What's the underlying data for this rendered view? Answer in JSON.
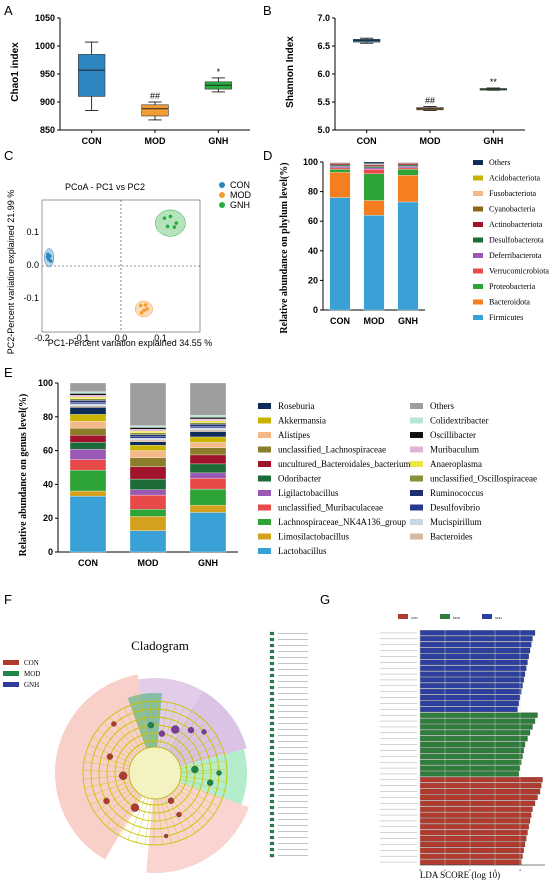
{
  "chart_data": [
    {
      "panel": "A",
      "type": "box",
      "ylabel": "Chao1 index",
      "ylim": [
        850,
        1050
      ],
      "yticks": [
        850,
        900,
        950,
        1000,
        1050
      ],
      "categories": [
        "CON",
        "MOD",
        "GNH"
      ],
      "colors": [
        "#2e86c1",
        "#f39c34",
        "#27ae3f"
      ],
      "boxes": [
        {
          "min": 885,
          "q1": 910,
          "median": 957,
          "q3": 985,
          "max": 1007
        },
        {
          "min": 868,
          "q1": 875,
          "median": 888,
          "q3": 895,
          "max": 900
        },
        {
          "min": 918,
          "q1": 923,
          "median": 930,
          "q3": 936,
          "max": 943
        }
      ],
      "annotations": [
        "",
        "##",
        "*"
      ]
    },
    {
      "panel": "B",
      "type": "box",
      "ylabel": "Shannon Index",
      "ylim": [
        5.0,
        7.0
      ],
      "yticks": [
        "5.0",
        "5.5",
        "6.0",
        "6.5",
        "7.0"
      ],
      "categories": [
        "CON",
        "MOD",
        "GNH"
      ],
      "colors": [
        "#2e86c1",
        "#f39c34",
        "#27ae3f"
      ],
      "boxes": [
        {
          "min": 6.55,
          "q1": 6.57,
          "median": 6.6,
          "q3": 6.62,
          "max": 6.64
        },
        {
          "min": 5.35,
          "q1": 5.36,
          "median": 5.38,
          "q3": 5.4,
          "max": 5.42
        },
        {
          "min": 5.71,
          "q1": 5.72,
          "median": 5.73,
          "q3": 5.74,
          "max": 5.75
        }
      ],
      "annotations": [
        "",
        "##",
        "**"
      ]
    },
    {
      "panel": "C",
      "type": "scatter",
      "title": "PCoA - PC1 vs PC2",
      "xlabel": "PC1-Percent variation explained 34.55 %",
      "ylabel": "PC2-Percent variation explained 21.99 %",
      "xlim": [
        -0.2,
        0.2
      ],
      "ylim": [
        -0.2,
        0.2
      ],
      "xticks": [
        "-0.2",
        "-0.1",
        "0.0",
        "0.1"
      ],
      "yticks": [
        "0.1",
        "0.0",
        "-0.1"
      ],
      "legend": [
        "CON",
        "MOD",
        "GNH"
      ],
      "series": [
        {
          "name": "CON",
          "color": "#2e86c1",
          "ellipse": {
            "cx": -0.182,
            "cy": 0.025,
            "rx": 0.012,
            "ry": 0.028
          },
          "x": [
            -0.185,
            -0.18,
            -0.183,
            -0.178,
            -0.186
          ],
          "y": [
            0.035,
            0.03,
            0.02,
            0.015,
            0.028
          ]
        },
        {
          "name": "MOD",
          "color": "#f39c34",
          "ellipse": {
            "cx": 0.058,
            "cy": -0.13,
            "rx": 0.022,
            "ry": 0.024
          },
          "x": [
            0.05,
            0.062,
            0.058,
            0.066,
            0.052
          ],
          "y": [
            -0.12,
            -0.118,
            -0.135,
            -0.13,
            -0.142
          ]
        },
        {
          "name": "GNH",
          "color": "#27ae3f",
          "ellipse": {
            "cx": 0.125,
            "cy": 0.13,
            "rx": 0.038,
            "ry": 0.04
          },
          "x": [
            0.11,
            0.125,
            0.14,
            0.118,
            0.135
          ],
          "y": [
            0.145,
            0.15,
            0.13,
            0.12,
            0.118
          ]
        }
      ]
    },
    {
      "panel": "D",
      "type": "stacked-bar",
      "ylabel": "Relative abundance on phylum level(%)",
      "ylim": [
        0,
        100
      ],
      "yticks": [
        0,
        20,
        40,
        60,
        80,
        100
      ],
      "categories": [
        "CON",
        "MOD",
        "GNH"
      ],
      "series": [
        {
          "name": "Firmicutes",
          "color": "#3aa1d6",
          "values": [
            76,
            64,
            73
          ]
        },
        {
          "name": "Bacteroidota",
          "color": "#f57f20",
          "values": [
            17,
            10,
            18
          ]
        },
        {
          "name": "Proteobacteria",
          "color": "#2ea336",
          "values": [
            2,
            18,
            4
          ]
        },
        {
          "name": "Verrucomicrobiota",
          "color": "#e84a4a",
          "values": [
            1,
            3,
            1
          ]
        },
        {
          "name": "Deferribacterota",
          "color": "#9b59b6",
          "values": [
            1,
            1,
            1
          ]
        },
        {
          "name": "Desulfobacterota",
          "color": "#1e6b3a",
          "values": [
            1,
            1,
            1
          ]
        },
        {
          "name": "Actinobacteriota",
          "color": "#a0132a",
          "values": [
            1,
            1,
            1
          ]
        },
        {
          "name": "Cyanobacteria",
          "color": "#8b6914",
          "values": [
            0.5,
            0.5,
            0.5
          ]
        },
        {
          "name": "Fusobacteriota",
          "color": "#f5b888",
          "values": [
            0.2,
            0.2,
            0.2
          ]
        },
        {
          "name": "Acidobacteriota",
          "color": "#c8b400",
          "values": [
            0.1,
            0.1,
            0.1
          ]
        },
        {
          "name": "Others",
          "color": "#0c2d5a",
          "values": [
            0.2,
            1.2,
            0.2
          ]
        }
      ]
    },
    {
      "panel": "E",
      "type": "stacked-bar",
      "ylabel": "Relative abundance on genus level(%)",
      "ylim": [
        0,
        100
      ],
      "yticks": [
        0,
        20,
        40,
        60,
        80,
        100
      ],
      "categories": [
        "CON",
        "MOD",
        "GNH"
      ],
      "series": [
        {
          "name": "Lactobacillus",
          "color": "#3aa1d6",
          "values": [
            32,
            12,
            22
          ]
        },
        {
          "name": "Limosilactobacillus",
          "color": "#d4a11e",
          "values": [
            3,
            8,
            4
          ]
        },
        {
          "name": "Lachnospiraceae_NK4A136_group",
          "color": "#2ea336",
          "values": [
            12,
            4,
            9
          ]
        },
        {
          "name": "unclassified_Muribaculaceae",
          "color": "#e84a4a",
          "values": [
            6,
            8,
            6
          ]
        },
        {
          "name": "Ligilactobacillus",
          "color": "#9b59b6",
          "values": [
            6,
            3,
            3
          ]
        },
        {
          "name": "Odoribacter",
          "color": "#1e6b3a",
          "values": [
            4,
            6,
            5
          ]
        },
        {
          "name": "uncultured_Bacteroidales_bacterium",
          "color": "#a0132a",
          "values": [
            4,
            7,
            5
          ]
        },
        {
          "name": "unclassified_Lachnospiraceae",
          "color": "#8b7d2a",
          "values": [
            4,
            5,
            4
          ]
        },
        {
          "name": "Alistipes",
          "color": "#f5b888",
          "values": [
            4,
            4,
            3
          ]
        },
        {
          "name": "Akkermansia",
          "color": "#c8b400",
          "values": [
            4,
            3,
            3
          ]
        },
        {
          "name": "Roseburia",
          "color": "#0c2d5a",
          "values": [
            4,
            2,
            3
          ]
        },
        {
          "name": "Bacteroides",
          "color": "#d8b89e",
          "values": [
            1,
            1,
            1
          ]
        },
        {
          "name": "Mucispirillum",
          "color": "#c9d6e3",
          "values": [
            1,
            1,
            1
          ]
        },
        {
          "name": "Desulfovibrio",
          "color": "#2a3a8c",
          "values": [
            1,
            1,
            1
          ]
        },
        {
          "name": "Ruminococcus",
          "color": "#1f2f6e",
          "values": [
            1,
            1,
            1
          ]
        },
        {
          "name": "unclassified_Oscillospiraceae",
          "color": "#8a8f3a",
          "values": [
            1,
            1,
            1
          ]
        },
        {
          "name": "Anaeroplasma",
          "color": "#efe34a",
          "values": [
            1,
            1,
            1
          ]
        },
        {
          "name": "Muribaculum",
          "color": "#e0b4d8",
          "values": [
            1,
            1,
            1
          ]
        },
        {
          "name": "Oscillibacter",
          "color": "#111111",
          "values": [
            1,
            1,
            1
          ]
        },
        {
          "name": "Colidextribacter",
          "color": "#b8e6d8",
          "values": [
            1,
            1,
            1
          ]
        },
        {
          "name": "Others",
          "color": "#9e9e9e",
          "values": [
            5,
            24,
            18
          ]
        }
      ],
      "legend_columns": [
        [
          "Roseburia",
          "Akkermansia",
          "Alistipes",
          "unclassified_Lachnospiraceae",
          "uncultured_Bacteroidales_bacterium",
          "Odoribacter",
          "Ligilactobacillus",
          "unclassified_Muribaculaceae",
          "Lachnospiraceae_NK4A136_group",
          "Limosilactobacillus",
          "Lactobacillus"
        ],
        [
          "Others",
          "Colidextribacter",
          "Oscillibacter",
          "Muribaculum",
          "Anaeroplasma",
          "unclassified_Oscillospiraceae",
          "Ruminococcus",
          "Desulfovibrio",
          "Mucispirillum",
          "Bacteroides"
        ]
      ]
    },
    {
      "panel": "F",
      "type": "cladogram",
      "title": "Cladogram",
      "legend": [
        {
          "name": "CON",
          "color": "#b03a2e"
        },
        {
          "name": "MOD",
          "color": "#1e8449"
        },
        {
          "name": "GNH",
          "color": "#2e3d9c"
        }
      ]
    },
    {
      "panel": "G",
      "type": "bar-horizontal",
      "xlabel": "LDA SCORE (log 10)",
      "xticks": [
        "0",
        "1",
        "2",
        "3",
        "4"
      ],
      "legend": [
        {
          "name": "CON",
          "color": "#b03a2e"
        },
        {
          "name": "MOD",
          "color": "#2e7d3a"
        },
        {
          "name": "GNH",
          "color": "#2c3e9e"
        }
      ],
      "bars": [
        {
          "group": "GNH",
          "value": 4.6
        },
        {
          "group": "GNH",
          "value": 4.5
        },
        {
          "group": "GNH",
          "value": 4.45
        },
        {
          "group": "GNH",
          "value": 4.4
        },
        {
          "group": "GNH",
          "value": 4.35
        },
        {
          "group": "GNH",
          "value": 4.3
        },
        {
          "group": "GNH",
          "value": 4.25
        },
        {
          "group": "GNH",
          "value": 4.2
        },
        {
          "group": "GNH",
          "value": 4.15
        },
        {
          "group": "GNH",
          "value": 4.1
        },
        {
          "group": "GNH",
          "value": 4.05
        },
        {
          "group": "GNH",
          "value": 4.0
        },
        {
          "group": "GNH",
          "value": 3.95
        },
        {
          "group": "GNH",
          "value": 3.9
        },
        {
          "group": "MOD",
          "value": 4.7
        },
        {
          "group": "MOD",
          "value": 4.6
        },
        {
          "group": "MOD",
          "value": 4.5
        },
        {
          "group": "MOD",
          "value": 4.4
        },
        {
          "group": "MOD",
          "value": 4.3
        },
        {
          "group": "MOD",
          "value": 4.2
        },
        {
          "group": "MOD",
          "value": 4.15
        },
        {
          "group": "MOD",
          "value": 4.1
        },
        {
          "group": "MOD",
          "value": 4.05
        },
        {
          "group": "MOD",
          "value": 4.0
        },
        {
          "group": "MOD",
          "value": 3.95
        },
        {
          "group": "CON",
          "value": 4.9
        },
        {
          "group": "CON",
          "value": 4.85
        },
        {
          "group": "CON",
          "value": 4.8
        },
        {
          "group": "CON",
          "value": 4.7
        },
        {
          "group": "CON",
          "value": 4.6
        },
        {
          "group": "CON",
          "value": 4.5
        },
        {
          "group": "CON",
          "value": 4.45
        },
        {
          "group": "CON",
          "value": 4.4
        },
        {
          "group": "CON",
          "value": 4.35
        },
        {
          "group": "CON",
          "value": 4.3
        },
        {
          "group": "CON",
          "value": 4.25
        },
        {
          "group": "CON",
          "value": 4.2
        },
        {
          "group": "CON",
          "value": 4.15
        },
        {
          "group": "CON",
          "value": 4.1
        },
        {
          "group": "CON",
          "value": 4.05
        }
      ]
    }
  ]
}
